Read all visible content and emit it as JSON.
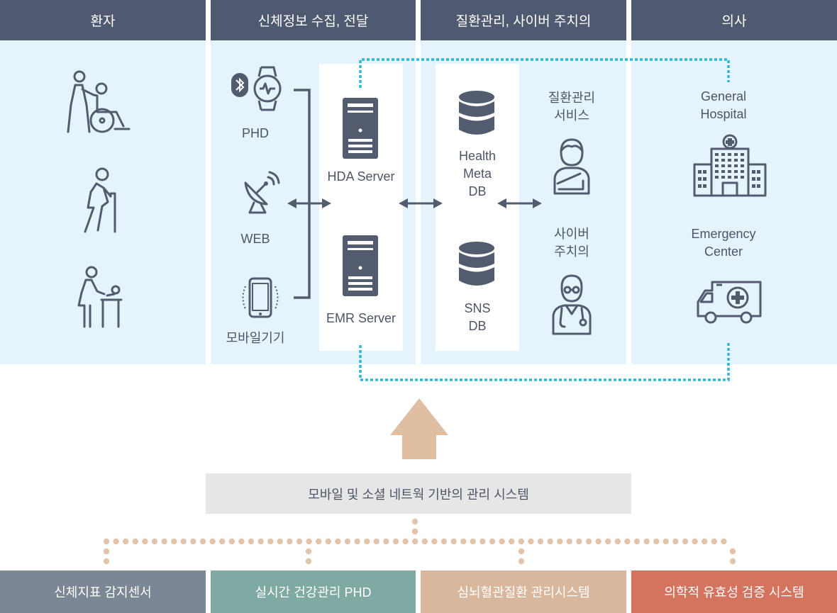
{
  "columns": {
    "patient": "환자",
    "collect": "신체정보 수집, 전달",
    "management": "질환관리, 사이버 주치의",
    "doctor": "의사"
  },
  "devices": {
    "phd": "PHD",
    "web": "WEB",
    "mobile": "모바일기기"
  },
  "servers": {
    "hda": "HDA Server",
    "emr": "EMR Server"
  },
  "databases": {
    "health_meta": [
      "Health",
      "Meta",
      "DB"
    ],
    "sns": [
      "SNS",
      "DB"
    ]
  },
  "services": {
    "disease": [
      "질환관리",
      "서비스"
    ],
    "cyber": [
      "사이버",
      "주치의"
    ]
  },
  "facilities": {
    "general": [
      "General",
      "Hospital"
    ],
    "emergency": [
      "Emergency",
      "Center"
    ]
  },
  "system_box": "모바일 및 소셜 네트웍 기반의 관리 시스템",
  "bottom_items": [
    {
      "label": "신체지표 감지센서",
      "color": "#7b8794"
    },
    {
      "label": "실시간 건강관리 PHD",
      "color": "#7fa9a3"
    },
    {
      "label": "심뇌혈관질환 관리시스템",
      "color": "#d9b79d"
    },
    {
      "label": "의학적 유효성 검증 시스템",
      "color": "#d4745f"
    }
  ],
  "colors": {
    "header": "#4f5a70",
    "panel": "#e4f3fc",
    "icon": "#535c6f",
    "dotted_connector": "#29b6d8",
    "arrow_up": "#dfbea2",
    "dots": "#e1c4ab"
  }
}
